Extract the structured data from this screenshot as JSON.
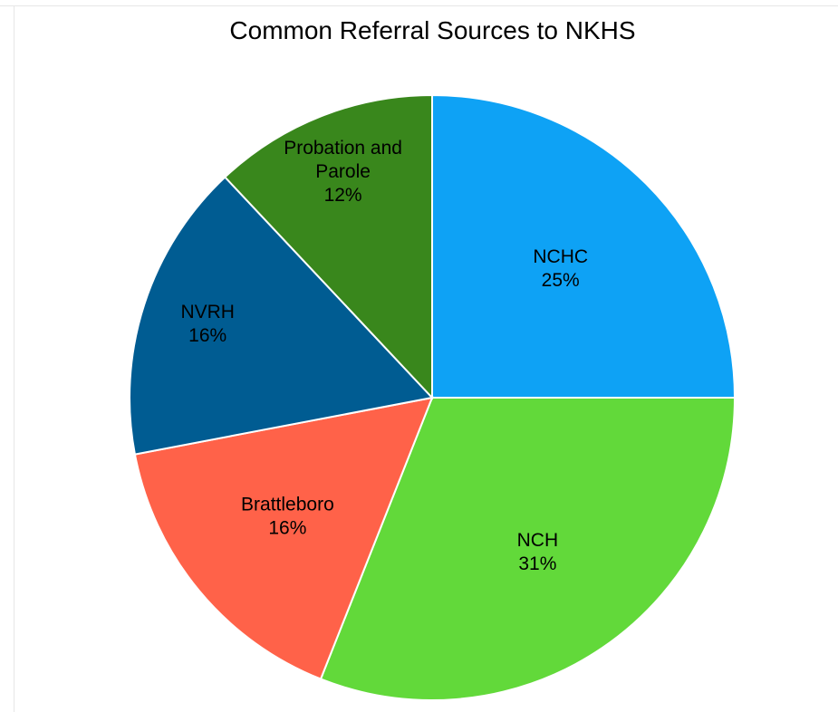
{
  "chart_data": {
    "type": "pie",
    "title": "Common Referral Sources to NKHS",
    "slices": [
      {
        "label": "NCHC",
        "value": 25,
        "value_label": "25%",
        "color": "#0ea2f5"
      },
      {
        "label": "NCH",
        "value": 31,
        "value_label": "31%",
        "color": "#62d93a"
      },
      {
        "label": "Brattleboro",
        "value": 16,
        "value_label": "16%",
        "color": "#ff6249"
      },
      {
        "label": "NVRH",
        "value": 16,
        "value_label": "16%",
        "color": "#005c92"
      },
      {
        "label": "Probation and Parole",
        "value": 12,
        "value_label": "12%",
        "color": "#39871c"
      }
    ],
    "start": "12 o'clock",
    "direction": "clockwise",
    "legend": "none",
    "label_position": "inside"
  }
}
